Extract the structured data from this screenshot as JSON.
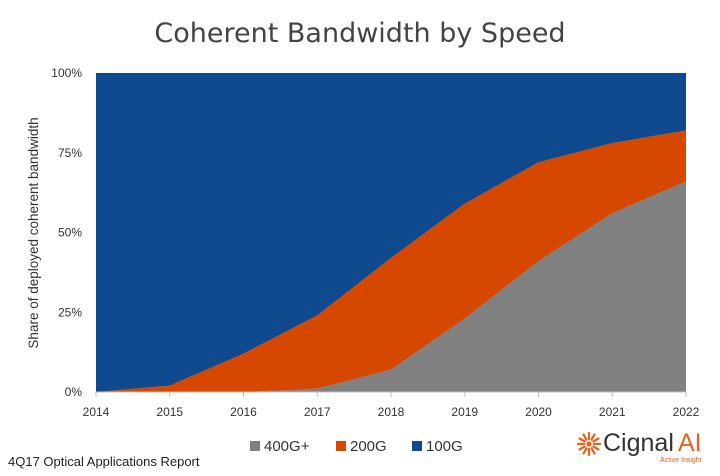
{
  "chart_data": {
    "type": "area",
    "stacked": true,
    "normalized": true,
    "title": "Coherent Bandwidth by Speed",
    "ylabel": "Share of deployed coherent bandwidth",
    "xlabel": "",
    "x": [
      2014,
      2015,
      2016,
      2017,
      2018,
      2019,
      2020,
      2021,
      2022
    ],
    "x_tick_labels": [
      "2014",
      "2015",
      "2016",
      "2017",
      "2018",
      "2019",
      "2020",
      "2021",
      "2022"
    ],
    "y_tick_labels": [
      "0%",
      "25%",
      "50%",
      "75%",
      "100%"
    ],
    "y_ticks": [
      0,
      25,
      50,
      75,
      100
    ],
    "ylim": [
      0,
      100
    ],
    "series": [
      {
        "name": "400G+",
        "color": "#808080",
        "values": [
          0,
          0,
          0,
          1,
          7,
          23,
          41,
          56,
          66
        ]
      },
      {
        "name": "200G",
        "color": "#d64700",
        "values": [
          0,
          2,
          12,
          23,
          35,
          36,
          31,
          22,
          16
        ]
      },
      {
        "name": "100G",
        "color": "#104a8e",
        "values": [
          100,
          98,
          88,
          76,
          58,
          41,
          28,
          22,
          18
        ]
      }
    ],
    "legend_position": "bottom",
    "grid": false
  },
  "footer": {
    "source": "4Q17 Optical Applications Report",
    "brand_name": "Cignal",
    "brand_suffix": "AI",
    "brand_tagline": "Active Insight",
    "logo_icon": "sunburst-icon"
  }
}
